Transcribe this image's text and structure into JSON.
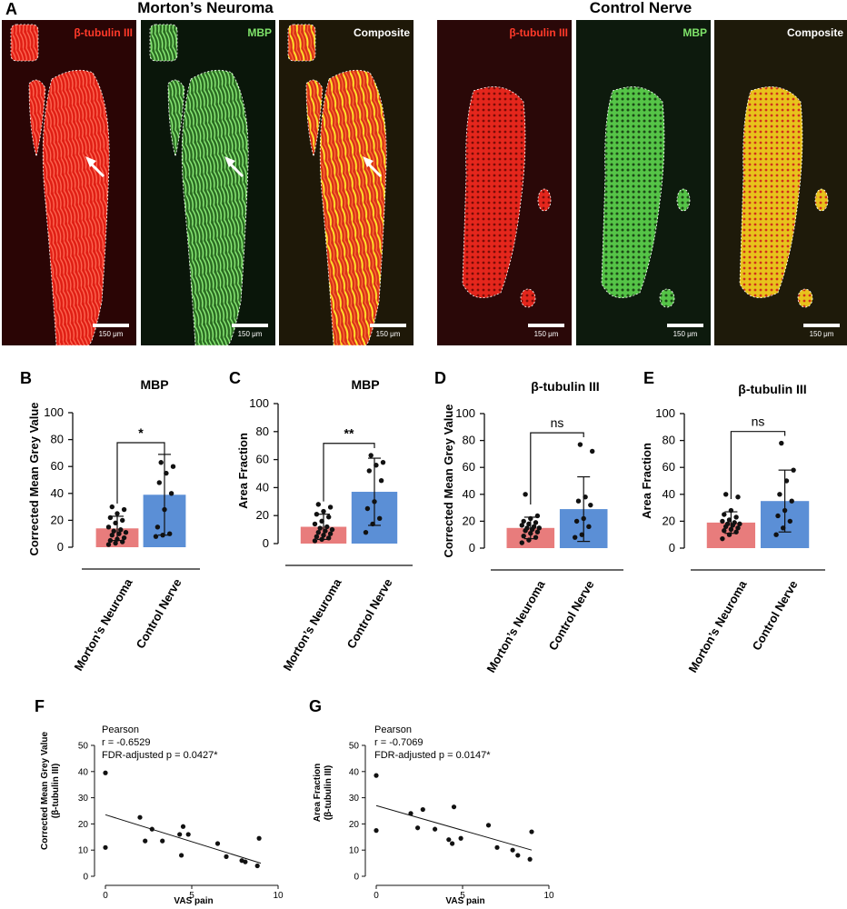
{
  "figure": {
    "panel_a": {
      "letter": "A",
      "groups": [
        {
          "title": "Morton’s Neuroma",
          "channels": [
            "β-tubulin III",
            "MBP",
            "Composite"
          ]
        },
        {
          "title": "Control Nerve",
          "channels": [
            "β-tubulin III",
            "MBP",
            "Composite"
          ]
        }
      ],
      "scale_bar": "150 μm",
      "colors": {
        "tubulin": "#ff3a2a",
        "mbp": "#7fe36a",
        "composite": "#ffffff"
      }
    }
  },
  "chart_data": [
    {
      "panel": "B",
      "type": "bar",
      "title": "MBP",
      "ylabel": "Corrected Mean Grey Value",
      "ylim": [
        0,
        100
      ],
      "yticks": [
        0,
        20,
        40,
        60,
        80,
        100
      ],
      "categories": [
        "Morton’s Neuroma",
        "Control Nerve"
      ],
      "means": [
        14,
        39
      ],
      "sd": [
        9,
        30
      ],
      "significance": "*",
      "bar_colors": [
        "#e87c7c",
        "#5b8fd6"
      ],
      "points": [
        [
          2,
          3,
          4,
          5,
          6,
          7,
          9,
          10,
          11,
          12,
          13,
          15,
          18,
          20,
          22,
          25,
          28,
          30
        ],
        [
          8,
          9,
          10,
          15,
          28,
          40,
          48,
          55,
          60,
          63
        ]
      ]
    },
    {
      "panel": "C",
      "type": "bar",
      "title": "MBP",
      "ylabel": "Area Fraction",
      "ylim": [
        0,
        100
      ],
      "yticks": [
        0,
        20,
        40,
        60,
        80,
        100
      ],
      "categories": [
        "Morton’s Neuroma",
        "Control Nerve"
      ],
      "means": [
        12,
        37
      ],
      "sd": [
        9,
        24
      ],
      "significance": "**",
      "bar_colors": [
        "#e87c7c",
        "#5b8fd6"
      ],
      "points": [
        [
          2,
          3,
          4,
          5,
          6,
          7,
          8,
          9,
          10,
          11,
          12,
          14,
          16,
          19,
          21,
          23,
          26,
          28
        ],
        [
          8,
          14,
          18,
          25,
          30,
          45,
          52,
          56,
          58,
          63
        ]
      ]
    },
    {
      "panel": "D",
      "type": "bar",
      "title": "β-tubulin III",
      "ylabel": "Corrected Mean Grey Value",
      "ylim": [
        0,
        100
      ],
      "yticks": [
        0,
        20,
        40,
        60,
        80,
        100
      ],
      "categories": [
        "Morton’s Neuroma",
        "Control Nerve"
      ],
      "means": [
        15,
        29
      ],
      "sd": [
        8,
        24
      ],
      "significance": "ns",
      "bar_colors": [
        "#e87c7c",
        "#5b8fd6"
      ],
      "points": [
        [
          4,
          6,
          8,
          9,
          11,
          12,
          13,
          14,
          15,
          15,
          16,
          17,
          18,
          19,
          20,
          22,
          24,
          40
        ],
        [
          8,
          10,
          16,
          20,
          22,
          32,
          35,
          38,
          72,
          77
        ]
      ]
    },
    {
      "panel": "E",
      "type": "bar",
      "title": "β-tubulin III",
      "ylabel": "Area Fraction",
      "ylim": [
        0,
        100
      ],
      "yticks": [
        0,
        20,
        40,
        60,
        80,
        100
      ],
      "categories": [
        "Morton’s Neuroma",
        "Control Nerve"
      ],
      "means": [
        19,
        35
      ],
      "sd": [
        8,
        23
      ],
      "significance": "ns",
      "bar_colors": [
        "#e87c7c",
        "#5b8fd6"
      ],
      "points": [
        [
          7,
          10,
          12,
          13,
          14,
          15,
          16,
          17,
          18,
          18,
          19,
          20,
          21,
          23,
          25,
          28,
          38,
          40
        ],
        [
          10,
          15,
          20,
          24,
          28,
          35,
          40,
          50,
          58,
          78
        ]
      ]
    },
    {
      "panel": "F",
      "type": "scatter",
      "ylabel": "Corrected Mean Grey Value (β-tubulin III)",
      "xlabel": "VAS pain",
      "xlim": [
        0,
        10
      ],
      "ylim": [
        0,
        50
      ],
      "xticks": [
        0,
        5,
        10
      ],
      "yticks": [
        0,
        10,
        20,
        30,
        40,
        50
      ],
      "annotation": [
        "Pearson",
        "r = -0.6529",
        "FDR-adjusted p = 0.0427*"
      ],
      "points": [
        [
          0,
          39.5
        ],
        [
          0,
          11
        ],
        [
          2,
          22.5
        ],
        [
          2.3,
          13.5
        ],
        [
          2.7,
          18
        ],
        [
          3.3,
          13.5
        ],
        [
          4.3,
          16
        ],
        [
          4.4,
          8
        ],
        [
          4.5,
          19
        ],
        [
          4.8,
          16
        ],
        [
          6.5,
          12.5
        ],
        [
          7,
          7.5
        ],
        [
          7.9,
          6
        ],
        [
          8.1,
          5.5
        ],
        [
          8.8,
          4
        ],
        [
          8.9,
          14.5
        ]
      ],
      "fit": [
        [
          0,
          23.5
        ],
        [
          9,
          5
        ]
      ]
    },
    {
      "panel": "G",
      "type": "scatter",
      "ylabel": "Area Fraction (β-tubulin III)",
      "xlabel": "VAS pain",
      "xlim": [
        0,
        10
      ],
      "ylim": [
        0,
        50
      ],
      "xticks": [
        0,
        5,
        10
      ],
      "yticks": [
        0,
        10,
        20,
        30,
        40,
        50
      ],
      "annotation": [
        "Pearson",
        "r = -0.7069",
        "FDR-adjusted p = 0.0147*"
      ],
      "points": [
        [
          0,
          38.5
        ],
        [
          0,
          17.5
        ],
        [
          2,
          24
        ],
        [
          2.4,
          18.5
        ],
        [
          2.7,
          25.5
        ],
        [
          3.4,
          18
        ],
        [
          4.2,
          14
        ],
        [
          4.4,
          12.5
        ],
        [
          4.5,
          26.5
        ],
        [
          4.9,
          14.5
        ],
        [
          6.5,
          19.5
        ],
        [
          7,
          11
        ],
        [
          7.9,
          10
        ],
        [
          8.2,
          8
        ],
        [
          8.9,
          6.5
        ],
        [
          9,
          17
        ]
      ],
      "fit": [
        [
          0,
          27
        ],
        [
          9,
          10
        ]
      ]
    }
  ]
}
